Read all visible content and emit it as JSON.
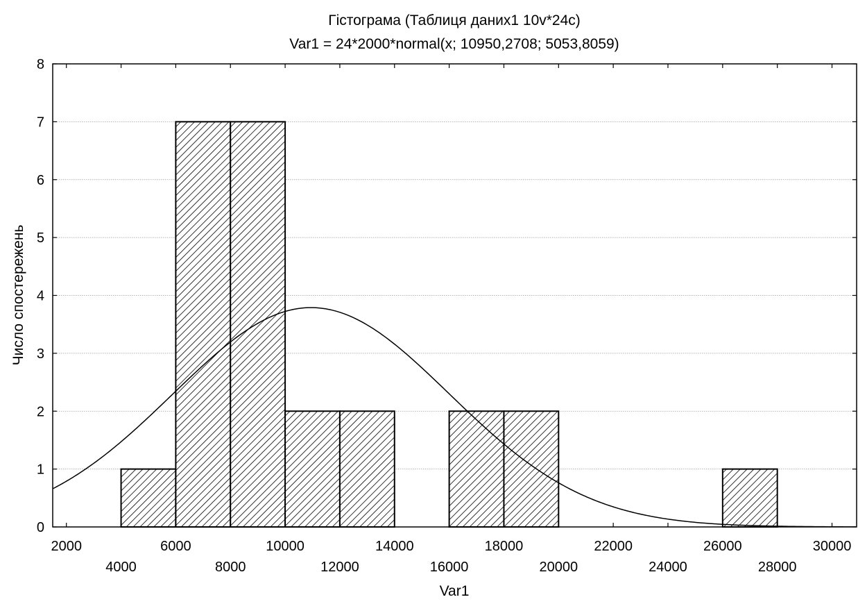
{
  "chart_data": {
    "type": "bar",
    "title": "Гістограма (Таблиця даних1 10v*24c)",
    "subtitle": "Var1 = 24*2000*normal(x; 10950,2708; 5053,8059)",
    "xlabel": "Var1",
    "ylabel": "Число спостережень",
    "xlim": [
      1500,
      30900
    ],
    "ylim": [
      0,
      8
    ],
    "x_ticks": [
      2000,
      4000,
      6000,
      8000,
      10000,
      12000,
      14000,
      16000,
      18000,
      20000,
      22000,
      24000,
      26000,
      28000,
      30000
    ],
    "x_tick_labels": [
      "2000",
      "4000",
      "6000",
      "8000",
      "10000",
      "12000",
      "14000",
      "16000",
      "18000",
      "20000",
      "22000",
      "24000",
      "26000",
      "28000",
      "30000"
    ],
    "y_ticks": [
      0,
      1,
      2,
      3,
      4,
      5,
      6,
      7,
      8
    ],
    "y_tick_labels": [
      "0",
      "1",
      "2",
      "3",
      "4",
      "5",
      "6",
      "7",
      "8"
    ],
    "bins": [
      {
        "from": 4000,
        "to": 6000,
        "count": 1
      },
      {
        "from": 6000,
        "to": 8000,
        "count": 7
      },
      {
        "from": 8000,
        "to": 10000,
        "count": 7
      },
      {
        "from": 10000,
        "to": 12000,
        "count": 2
      },
      {
        "from": 12000,
        "to": 14000,
        "count": 2
      },
      {
        "from": 16000,
        "to": 18000,
        "count": 2
      },
      {
        "from": 18000,
        "to": 20000,
        "count": 2
      },
      {
        "from": 26000,
        "to": 28000,
        "count": 1
      }
    ],
    "fitted_curve": {
      "type": "normal",
      "n": 24,
      "bin_width": 2000,
      "mean": 10950.2708,
      "sd": 5053.8059
    },
    "grid": true,
    "bar_fill": "hatched",
    "colors": {
      "bar_stroke": "#000000",
      "hatch": "#000000",
      "curve": "#000000",
      "grid": "#9a9a9a",
      "background": "#ffffff"
    }
  }
}
